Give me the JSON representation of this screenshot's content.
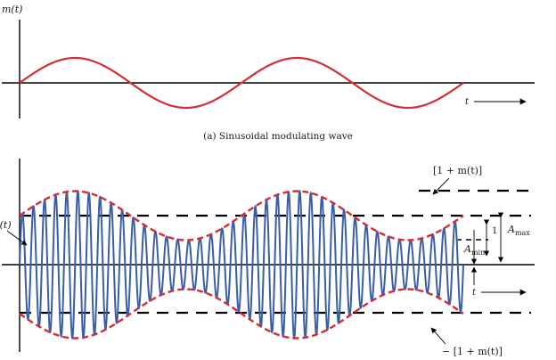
{
  "panel_a": {
    "y_label": "m(t)",
    "t_label": "t",
    "caption": "(a) Sinusoidal modulating wave"
  },
  "panel_b": {
    "s_label": "s(t)",
    "t_label": "t",
    "upper_envelope_label": "[1 + m(t)]",
    "lower_envelope_label": "− [1 + m(t)]",
    "a_max_label": "A",
    "a_max_sub": "max",
    "a_min_label": "A",
    "a_min_sub": "min",
    "one_label": "1"
  },
  "colors": {
    "modulating": "#d42d34",
    "carrier": "#3a5ea8",
    "envelope": "#d42d34",
    "axes": "#000000"
  },
  "signal": {
    "modulating_cycles": 2,
    "modulation_index": 0.5,
    "carrier_cycles": 40
  }
}
